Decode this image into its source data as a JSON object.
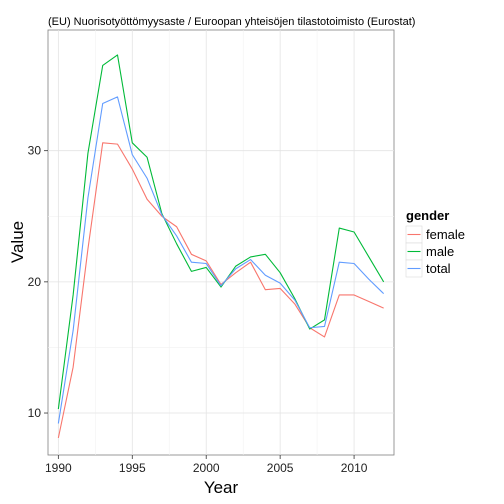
{
  "chart_data": {
    "type": "line",
    "title": "(EU) Nuorisotyöttömyysaste / Euroopan yhteisöjen tilastotoimisto (Eurostat)",
    "xlabel": "Year",
    "ylabel": "Value",
    "xlim": [
      1989.3,
      2012.7
    ],
    "ylim": [
      6.8,
      39.2
    ],
    "x_ticks": [
      1990,
      1995,
      2000,
      2005,
      2010
    ],
    "y_ticks": [
      10,
      20,
      30
    ],
    "grid": true,
    "legend_title": "gender",
    "legend_position": "right",
    "x": [
      1990,
      1991,
      1992,
      1993,
      1994,
      1995,
      1996,
      1997,
      1998,
      1999,
      2000,
      2001,
      2002,
      2003,
      2004,
      2005,
      2006,
      2007,
      2008,
      2009,
      2010,
      2011,
      2012
    ],
    "series": [
      {
        "name": "female",
        "color": "#F8766D",
        "values": [
          8.1,
          13.5,
          22.5,
          30.6,
          30.5,
          28.6,
          26.3,
          25.0,
          24.2,
          22.1,
          21.6,
          19.8,
          20.7,
          21.5,
          19.4,
          19.5,
          18.3,
          16.5,
          15.8,
          19.0,
          19.0,
          18.5,
          18.0
        ]
      },
      {
        "name": "male",
        "color": "#00BA38",
        "values": [
          10.3,
          19.0,
          29.8,
          36.5,
          37.3,
          30.6,
          29.5,
          25.2,
          22.9,
          20.8,
          21.1,
          19.6,
          21.2,
          21.9,
          22.1,
          20.7,
          18.7,
          16.4,
          17.1,
          24.1,
          23.8,
          21.9,
          20.0
        ]
      },
      {
        "name": "total",
        "color": "#619CFF",
        "values": [
          9.2,
          16.3,
          26.4,
          33.6,
          34.1,
          29.7,
          27.9,
          25.1,
          23.5,
          21.5,
          21.4,
          19.7,
          21.0,
          21.7,
          20.5,
          19.9,
          18.6,
          16.5,
          16.6,
          21.5,
          21.4,
          20.2,
          19.1
        ]
      }
    ]
  }
}
